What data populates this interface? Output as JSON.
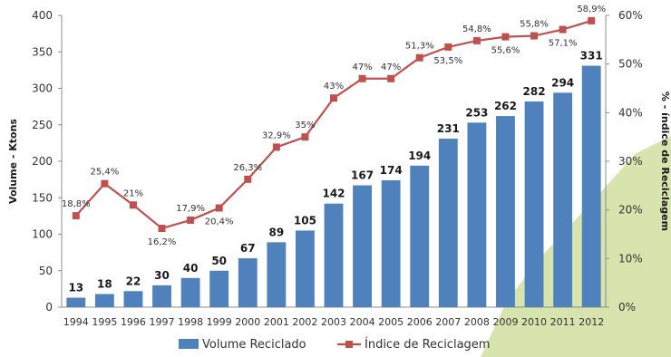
{
  "chart_data": {
    "type": "bar",
    "categories": [
      "1994",
      "1995",
      "1996",
      "1997",
      "1998",
      "1999",
      "2000",
      "2001",
      "2002",
      "2003",
      "2004",
      "2005",
      "2006",
      "2007",
      "2008",
      "2009",
      "2010",
      "2011",
      "2012"
    ],
    "series": [
      {
        "name": "Volume Reciclado",
        "type": "bar",
        "axis": "left",
        "color": "#4f81bd",
        "values": [
          13,
          18,
          22,
          30,
          40,
          50,
          67,
          89,
          105,
          142,
          167,
          174,
          194,
          231,
          253,
          262,
          282,
          294,
          331
        ],
        "labels": [
          "13",
          "18",
          "22",
          "30",
          "40",
          "50",
          "67",
          "89",
          "105",
          "142",
          "167",
          "174",
          "194",
          "231",
          "253",
          "262",
          "282",
          "294",
          "331"
        ]
      },
      {
        "name": "Índice de Reciclagem",
        "type": "line",
        "axis": "right",
        "color": "#c0504d",
        "values": [
          18.8,
          25.4,
          21,
          16.2,
          17.9,
          20.4,
          26.3,
          32.9,
          35,
          43,
          47,
          47,
          51.3,
          53.5,
          54.8,
          55.6,
          55.8,
          57.1,
          58.9
        ],
        "labels": [
          "18,8%",
          "25,4%",
          "21%",
          "16,2%",
          "17,9%",
          "20,4%",
          "26,3%",
          "32,9%",
          "35%",
          "43%",
          "47%",
          "47%",
          "51,3%",
          "53,5%",
          "54,8%",
          "55,6%",
          "55,8%",
          "57,1%",
          "58,9%"
        ]
      }
    ],
    "ylabel": "Volume - Ktons",
    "ylim": [
      0,
      400
    ],
    "yticks": [
      "0",
      "50",
      "100",
      "150",
      "200",
      "250",
      "300",
      "350",
      "400"
    ],
    "y2label": "% - índice de Reciclagem",
    "y2lim": [
      0,
      60
    ],
    "y2ticks": [
      "0%",
      "10%",
      "20%",
      "30%",
      "40%",
      "50%",
      "60%"
    ],
    "grid": false,
    "legend": "bottom"
  }
}
